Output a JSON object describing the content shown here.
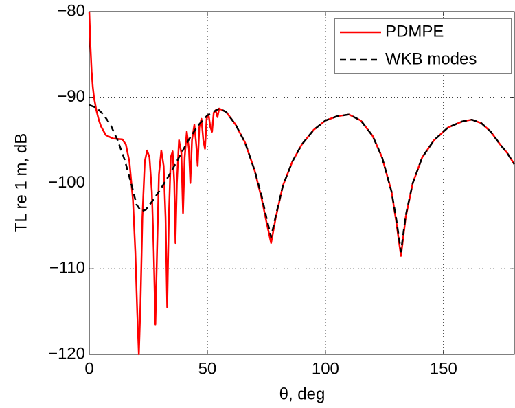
{
  "chart_data": {
    "type": "line",
    "xlabel": "θ, deg",
    "ylabel": "TL re 1 m, dB",
    "xlim": [
      0,
      180
    ],
    "ylim": [
      -120,
      -80
    ],
    "xticks": [
      0,
      50,
      100,
      150
    ],
    "yticks": [
      {
        "value": -120,
        "label": "−120"
      },
      {
        "value": -110,
        "label": "−110"
      },
      {
        "value": -100,
        "label": "−100"
      },
      {
        "value": -90,
        "label": "−90"
      },
      {
        "value": -80,
        "label": "−80"
      }
    ],
    "grid": true,
    "legend": "northeast",
    "series": [
      {
        "name": "PDMPE",
        "color": "#ff0000",
        "dash": "solid",
        "x": [
          0,
          0.5,
          1,
          1.5,
          2,
          3,
          4,
          5,
          7,
          10,
          14,
          15.5,
          17,
          18.5,
          19.5,
          20.3,
          21,
          21.7,
          22.5,
          23.5,
          24.5,
          25.5,
          26.5,
          27.3,
          28,
          28.7,
          29.5,
          30.5,
          31.5,
          32.3,
          33,
          33.7,
          34.5,
          35.3,
          36,
          36.5,
          37.1,
          38,
          39,
          39.7,
          40.4,
          41.3,
          42.2,
          42.8,
          43.5,
          44.5,
          45.3,
          45.9,
          46.6,
          47.5,
          48.3,
          49,
          49.7,
          50.5,
          51.3,
          52,
          52.7,
          53.5,
          54.3,
          55,
          58,
          62,
          66,
          70,
          73,
          75,
          77,
          79,
          82,
          86,
          90,
          95,
          100,
          105,
          110,
          115,
          120,
          124,
          128,
          130,
          132,
          134,
          137,
          141,
          146,
          152,
          158,
          162,
          166,
          170,
          174,
          177,
          180
        ],
        "values": [
          -80,
          -84,
          -87,
          -88.8,
          -90,
          -91.5,
          -92.6,
          -93.4,
          -94.4,
          -94.8,
          -94.9,
          -95.5,
          -97.5,
          -102,
          -108,
          -115,
          -120,
          -114,
          -104,
          -97.5,
          -96.2,
          -97,
          -101,
          -108,
          -116.5,
          -108,
          -99,
          -96.2,
          -98,
          -104,
          -114.5,
          -104,
          -97,
          -96.3,
          -100,
          -107,
          -100,
          -95,
          -96.5,
          -103.5,
          -97,
          -94,
          -96,
          -100,
          -95,
          -93.2,
          -95.5,
          -98,
          -93.5,
          -92.5,
          -95,
          -96,
          -92.5,
          -92,
          -93.5,
          -94,
          -91.8,
          -91.5,
          -92.3,
          -91.3,
          -91.7,
          -93.2,
          -95.3,
          -98.5,
          -101.8,
          -104.5,
          -107,
          -104,
          -100.3,
          -97.5,
          -95.5,
          -93.8,
          -92.7,
          -92.2,
          -92,
          -92.7,
          -94.5,
          -97,
          -101,
          -104.5,
          -108.5,
          -104,
          -100,
          -97,
          -95,
          -93.5,
          -92.8,
          -92.6,
          -93,
          -94,
          -95.5,
          -96.5,
          -97.8
        ]
      },
      {
        "name": "WKB modes",
        "color": "#000000",
        "dash": "dashed",
        "x": [
          0,
          3,
          6,
          9,
          12,
          15,
          18,
          20,
          22,
          24,
          27,
          30,
          34,
          38,
          42,
          46,
          50,
          55,
          58,
          62,
          66,
          70,
          73,
          75,
          77,
          79,
          82,
          86,
          90,
          95,
          100,
          105,
          110,
          115,
          120,
          124,
          128,
          130,
          132,
          134,
          137,
          141,
          146,
          152,
          158,
          162,
          166,
          170,
          174,
          177,
          180
        ],
        "values": [
          -90.9,
          -91.2,
          -92,
          -93.2,
          -95,
          -97.3,
          -100.3,
          -102.5,
          -103.3,
          -103.1,
          -102,
          -100.8,
          -99,
          -97,
          -95,
          -93.3,
          -92.1,
          -91.3,
          -91.7,
          -93.2,
          -95.3,
          -98.5,
          -101.5,
          -104,
          -106.3,
          -103.8,
          -100.3,
          -97.5,
          -95.5,
          -93.8,
          -92.7,
          -92.2,
          -92,
          -92.7,
          -94.5,
          -97,
          -101,
          -104.2,
          -108,
          -103.8,
          -100,
          -97,
          -95,
          -93.5,
          -92.8,
          -92.6,
          -93,
          -94,
          -95.5,
          -96.5,
          -97.8
        ]
      }
    ]
  }
}
